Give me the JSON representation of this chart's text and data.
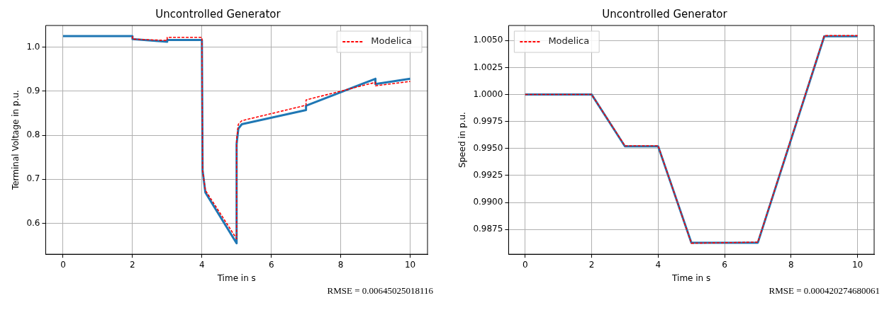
{
  "chart_data": [
    {
      "type": "line",
      "title": "Uncontrolled Generator",
      "xlabel": "Time in s",
      "ylabel": "Terminal Voltage in p.u.",
      "xlim": [
        -0.5,
        10.5
      ],
      "xticks": [
        0,
        2,
        4,
        6,
        8,
        10
      ],
      "ylim": [
        0.53,
        1.049
      ],
      "yticks": [
        0.6,
        0.7,
        0.8,
        0.9,
        {
          "value": 1,
          "label": "1.0"
        }
      ],
      "grid": true,
      "legend": "top right",
      "marker": "none",
      "series": [
        {
          "name": "Modelica",
          "color": "#ff0000",
          "line_style": "dashed",
          "x": [
            2,
            2,
            3,
            3,
            4,
            4,
            4.02,
            4.1,
            5,
            5,
            5.05,
            5.15,
            7,
            7,
            9,
            9,
            10
          ],
          "values": [
            1.025,
            1.018,
            1.015,
            1.022,
            1.022,
            1.02,
            0.72,
            0.675,
            0.565,
            0.79,
            0.825,
            0.833,
            0.868,
            0.88,
            0.92,
            0.912,
            0.922
          ]
        },
        {
          "color": "#1f77b4",
          "line_style": "solid",
          "x": [
            0,
            2,
            2,
            3,
            3,
            4,
            4,
            4.02,
            4.1,
            5,
            5,
            5.05,
            5.15,
            7,
            7,
            9,
            9,
            10
          ],
          "values": [
            1.025,
            1.025,
            1.018,
            1.012,
            1.016,
            1.016,
            1.014,
            0.72,
            0.67,
            0.555,
            0.78,
            0.815,
            0.825,
            0.857,
            0.867,
            0.928,
            0.916,
            0.928
          ]
        }
      ],
      "annotations": [
        "RMSE = 0.00645025018116"
      ]
    },
    {
      "type": "line",
      "title": "Uncontrolled Generator",
      "xlabel": "Time in s",
      "ylabel": "Speed in p.u.",
      "xlim": [
        -0.5,
        10.5
      ],
      "xticks": [
        0,
        2,
        4,
        6,
        8,
        10
      ],
      "ylim": [
        0.9852,
        1.0064
      ],
      "yticks": [
        {
          "value": 0.9875,
          "label": "0.9875"
        },
        {
          "value": 0.99,
          "label": "0.9900"
        },
        {
          "value": 0.9925,
          "label": "0.9925"
        },
        {
          "value": 0.995,
          "label": "0.9950"
        },
        {
          "value": 0.9975,
          "label": "0.9975"
        },
        {
          "value": 1,
          "label": "1.0000"
        },
        {
          "value": 1.0025,
          "label": "1.0025"
        },
        {
          "value": 1.005,
          "label": "1.0050"
        }
      ],
      "grid": true,
      "legend": "top left",
      "marker": "none",
      "series": [
        {
          "name": "Modelica",
          "color": "#ff0000",
          "line_style": "dashed",
          "x": [
            0,
            2,
            3,
            4,
            5,
            7,
            9,
            10
          ],
          "values": [
            1,
            1,
            0.99525,
            0.99525,
            0.98622,
            0.98632,
            1.00546,
            1.00546
          ]
        },
        {
          "color": "#1f77b4",
          "line_style": "solid",
          "x": [
            0,
            2,
            3,
            4,
            5,
            7,
            9,
            10
          ],
          "values": [
            1,
            1,
            0.9952,
            0.9952,
            0.98627,
            0.98627,
            1.0054,
            1.0054
          ]
        }
      ],
      "annotations": [
        "RMSE = 0.000420274680061"
      ]
    }
  ]
}
